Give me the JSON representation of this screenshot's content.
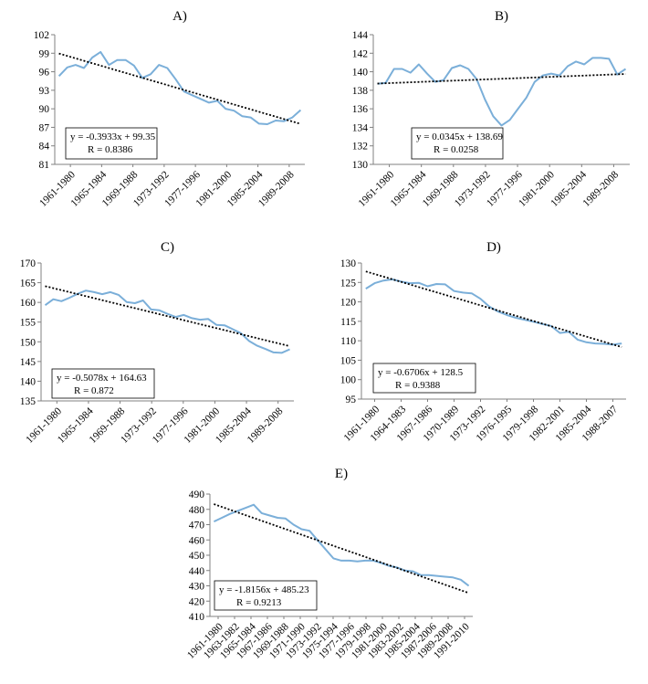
{
  "chart_data": [
    {
      "type": "line",
      "title": "A)",
      "ylim": [
        81,
        102
      ],
      "yticks": [
        81,
        84,
        87,
        90,
        93,
        96,
        99,
        102
      ],
      "xtick_labels": [
        "1961-1980",
        "1965-1984",
        "1969-1988",
        "1973-1992",
        "1977-1996",
        "1981-2000",
        "1985-2004",
        "1989-2008"
      ],
      "series": [
        {
          "values": [
            95.3,
            96.7,
            97.1,
            96.6,
            98.3,
            99.2,
            97.1,
            97.9,
            97.9,
            97.0,
            95.0,
            95.6,
            97.1,
            96.6,
            94.8,
            92.8,
            92.2,
            91.6,
            91.0,
            91.3,
            90.0,
            89.7,
            88.8,
            88.6,
            87.6,
            87.5,
            88.1,
            88.0,
            88.6,
            89.8
          ]
        }
      ],
      "trendline": {
        "slope": -0.3933,
        "intercept": 99.35
      },
      "equation": "y = -0.3933x + 99.35",
      "r_label": "R  = 0.8386",
      "grid": false,
      "colors": {
        "series": "#7bafd9",
        "trend": "#000000"
      }
    },
    {
      "type": "line",
      "title": "B)",
      "ylim": [
        130,
        144
      ],
      "yticks": [
        130,
        132,
        134,
        136,
        138,
        140,
        142,
        144
      ],
      "xtick_labels": [
        "1961-1980",
        "1965-1984",
        "1969-1988",
        "1973-1992",
        "1977-1996",
        "1981-2000",
        "1985-2004",
        "1989-2008"
      ],
      "series": [
        {
          "values": [
            138.7,
            138.8,
            140.3,
            140.3,
            139.9,
            140.8,
            139.8,
            138.9,
            139.1,
            140.4,
            140.7,
            140.3,
            139.2,
            137.0,
            135.2,
            134.2,
            134.8,
            136.0,
            137.2,
            138.9,
            139.6,
            139.8,
            139.6,
            140.6,
            141.1,
            140.8,
            141.5,
            141.5,
            141.4,
            139.7,
            140.3
          ]
        }
      ],
      "trendline": {
        "slope": 0.0345,
        "intercept": 138.69
      },
      "equation": "y = 0.0345x + 138.69",
      "r_label": "R  = 0.0258",
      "grid": false,
      "colors": {
        "series": "#7bafd9",
        "trend": "#000000"
      }
    },
    {
      "type": "line",
      "title": "C)",
      "ylim": [
        135,
        170
      ],
      "yticks": [
        135,
        140,
        145,
        150,
        155,
        160,
        165,
        170
      ],
      "xtick_labels": [
        "1961-1980",
        "1965-1984",
        "1969-1988",
        "1973-1992",
        "1977-1996",
        "1981-2000",
        "1985-2004",
        "1989-2008"
      ],
      "series": [
        {
          "values": [
            159.3,
            160.8,
            160.3,
            161.2,
            162.2,
            163.0,
            162.6,
            162.1,
            162.6,
            161.9,
            160.1,
            159.8,
            160.5,
            158.2,
            158.0,
            157.1,
            156.3,
            156.8,
            156.0,
            155.6,
            155.8,
            154.3,
            154.2,
            153.2,
            152.2,
            150.2,
            149.0,
            148.2,
            147.3,
            147.2,
            148.1
          ]
        }
      ],
      "trendline": {
        "slope": -0.5078,
        "intercept": 164.63
      },
      "equation": "y = -0.5078x + 164.63",
      "r_label": "R  = 0.872",
      "grid": false,
      "colors": {
        "series": "#7bafd9",
        "trend": "#000000"
      }
    },
    {
      "type": "line",
      "title": "D)",
      "ylim": [
        95,
        130
      ],
      "yticks": [
        95,
        100,
        105,
        110,
        115,
        120,
        125,
        130
      ],
      "xtick_labels": [
        "1961-1980",
        "1964-1983",
        "1967-1986",
        "1970-1989",
        "1973-1992",
        "1976-1995",
        "1979-1998",
        "1982-2001",
        "1985-2004",
        "1988-2007"
      ],
      "series": [
        {
          "values": [
            123.4,
            124.8,
            125.5,
            125.8,
            125.2,
            124.8,
            124.9,
            124.0,
            124.6,
            124.5,
            122.8,
            122.4,
            122.2,
            120.8,
            118.8,
            117.5,
            116.6,
            115.9,
            115.4,
            114.9,
            114.3,
            113.8,
            112.0,
            112.3,
            110.3,
            109.6,
            109.3,
            109.2,
            109.0,
            109.3
          ]
        }
      ],
      "trendline": {
        "slope": -0.6706,
        "intercept": 128.5
      },
      "equation": "y = -0.6706x + 128.5",
      "r_label": "R  = 0.9388",
      "grid": false,
      "colors": {
        "series": "#7bafd9",
        "trend": "#000000"
      }
    },
    {
      "type": "line",
      "title": "E)",
      "ylim": [
        410,
        490
      ],
      "yticks": [
        410,
        420,
        430,
        440,
        450,
        460,
        470,
        480,
        490
      ],
      "xtick_labels": [
        "1961-1980",
        "1963-1982",
        "1965-1984",
        "1967-1986",
        "1969-1988",
        "1971-1990",
        "1973-1992",
        "1975-1994",
        "1977-1996",
        "1979-1998",
        "1981-2000",
        "1983-2002",
        "1985-2004",
        "1987-2006",
        "1989-2008",
        "1991-2010"
      ],
      "series": [
        {
          "values": [
            472.0,
            474.5,
            477.0,
            479.0,
            481.0,
            483.0,
            477.5,
            476.0,
            474.5,
            474.0,
            470.0,
            467.0,
            466.0,
            460.0,
            454.0,
            448.0,
            446.5,
            446.5,
            446.0,
            446.5,
            446.5,
            445.0,
            443.0,
            442.0,
            440.0,
            439.5,
            437.0,
            437.0,
            436.5,
            436.0,
            435.5,
            434.0,
            430.0
          ]
        }
      ],
      "trendline": {
        "slope": -1.8156,
        "intercept": 485.23
      },
      "equation": "y = -1.8156x + 485.23",
      "r_label": "R  = 0.9213",
      "grid": false,
      "colors": {
        "series": "#7bafd9",
        "trend": "#000000"
      }
    }
  ]
}
